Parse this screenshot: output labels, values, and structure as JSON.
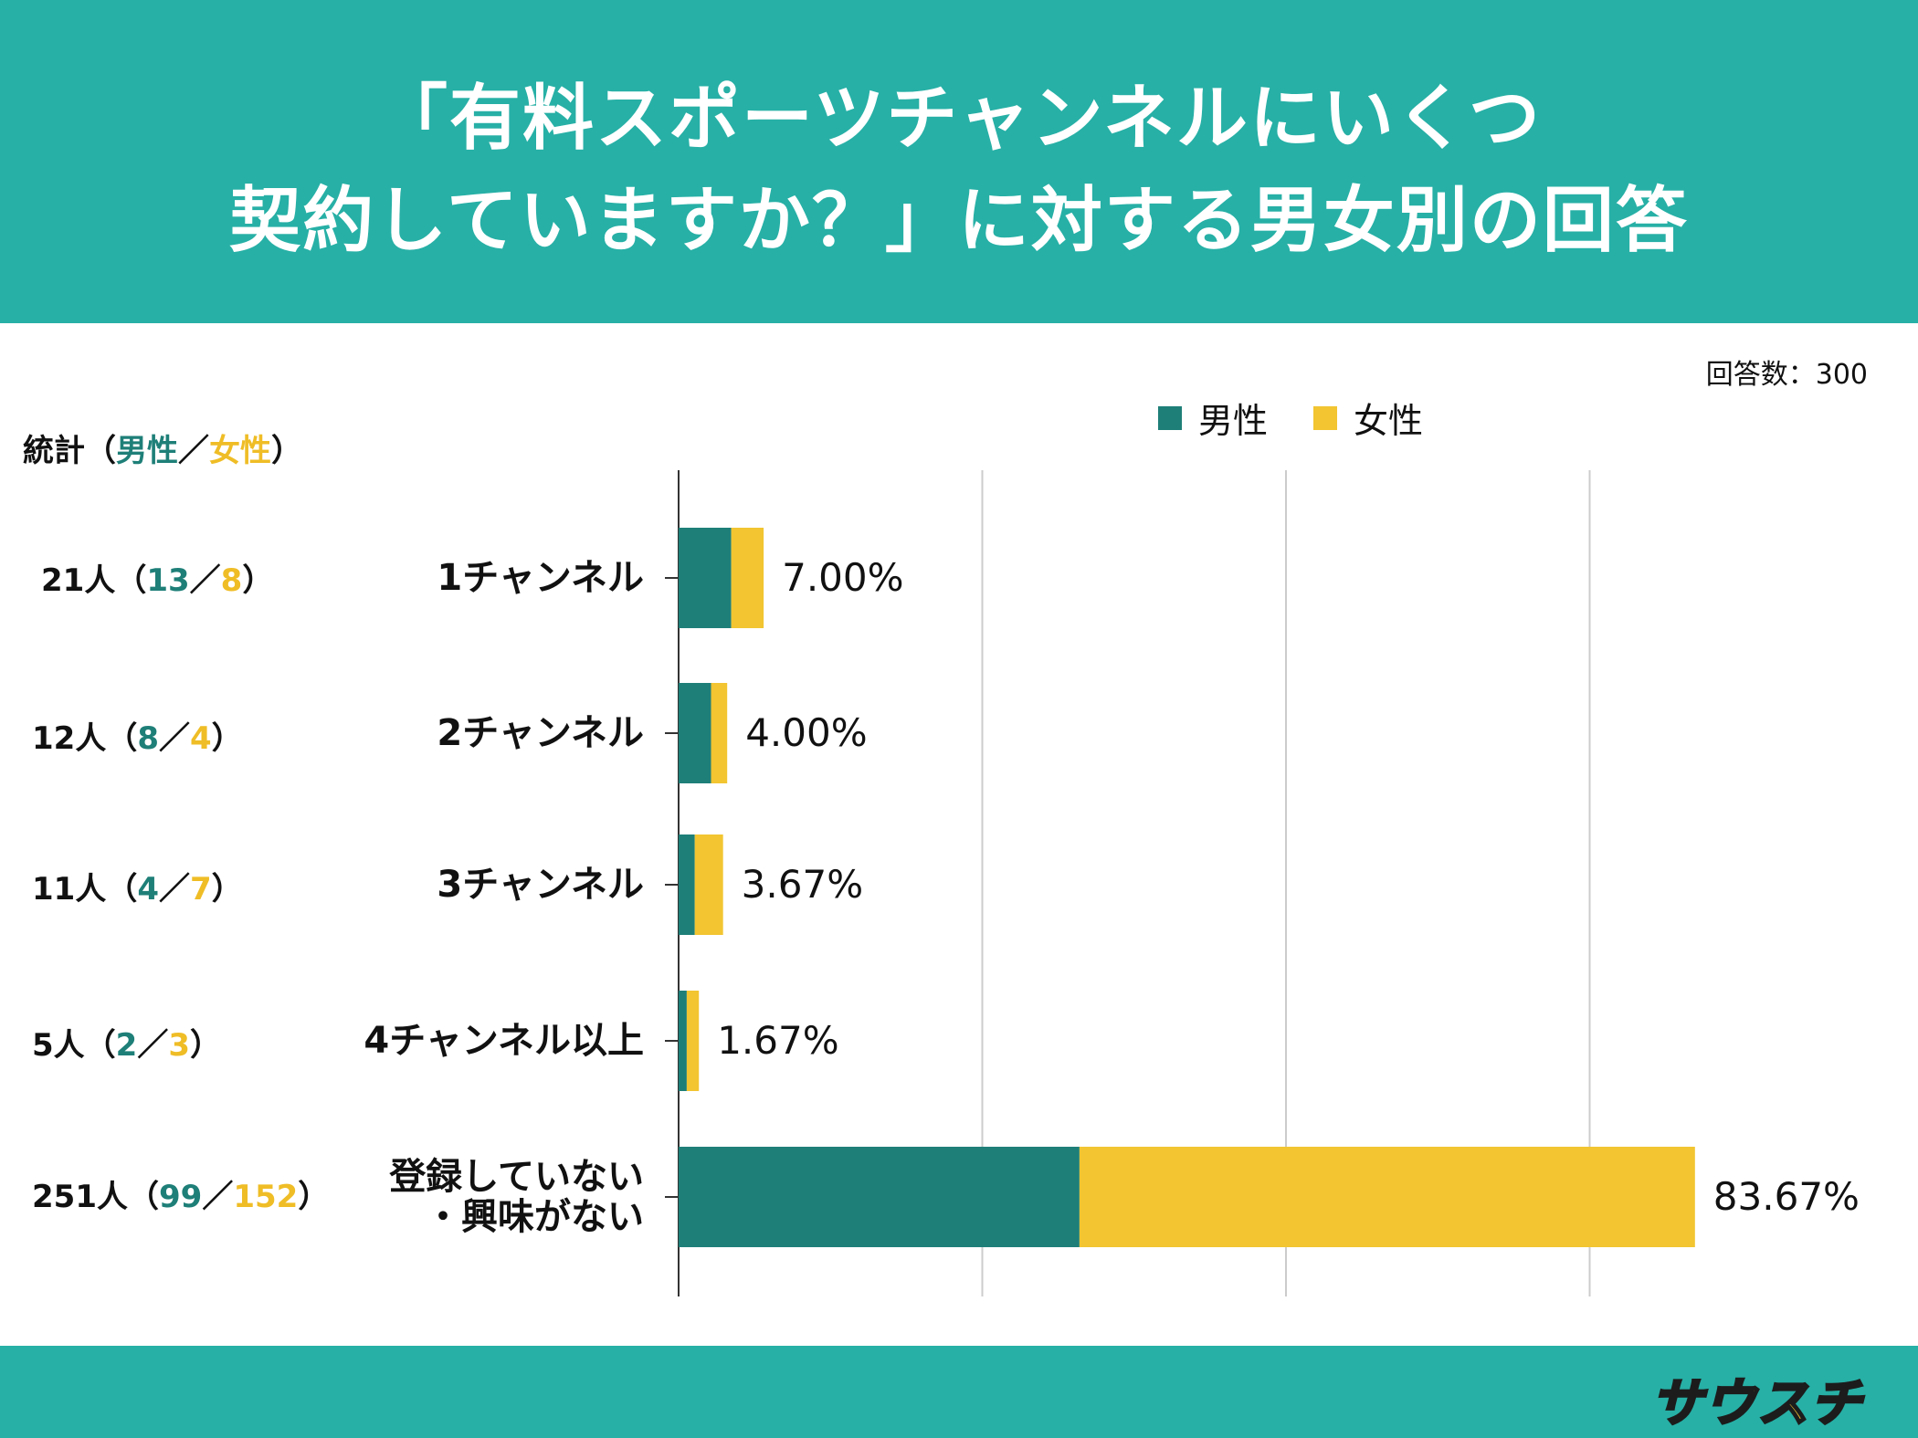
{
  "header": {
    "title_line1": "「有料スポーツチャンネルにいくつ",
    "title_line2": "契約していますか？」に対する男女別の回答"
  },
  "respondents": "回答数：300",
  "colors": {
    "male": "#1e7f78",
    "female": "#f2c531",
    "header": "#27b0a6"
  },
  "stats_header": {
    "label": "統計（",
    "male": "男性",
    "sep": "／",
    "female": "女性",
    "close": "）"
  },
  "stats": [
    {
      "total": "21人（",
      "male": "13",
      "sep": "／",
      "female": "8",
      "close": "）"
    },
    {
      "total": "12人（",
      "male": "8",
      "sep": "／",
      "female": "4",
      "close": "）"
    },
    {
      "total": "11人（",
      "male": "4",
      "sep": "／",
      "female": "7",
      "close": "）"
    },
    {
      "total": "5人（",
      "male": "2",
      "sep": "／",
      "female": "3",
      "close": "）"
    },
    {
      "total": "251人（",
      "male": "99",
      "sep": "／",
      "female": "152",
      "close": "）"
    }
  ],
  "chart_data": {
    "type": "bar",
    "orientation": "horizontal",
    "stacked": true,
    "categories": [
      "1チャンネル",
      "2チャンネル",
      "3チャンネル",
      "4チャンネル以上",
      "登録していない\n・興味がない"
    ],
    "series": [
      {
        "name": "男性",
        "values": [
          4.33,
          2.67,
          1.33,
          0.67,
          33.0
        ]
      },
      {
        "name": "女性",
        "values": [
          2.67,
          1.33,
          2.33,
          1.0,
          50.67
        ]
      }
    ],
    "data_labels": [
      "7.00%",
      "4.00%",
      "3.67%",
      "1.67%",
      "83.67%"
    ],
    "xlim": [
      0,
      100
    ],
    "legend": [
      "男性",
      "女性"
    ],
    "legend_position": "top-right",
    "grid": true
  },
  "logo": {
    "text": "サウスチ"
  }
}
